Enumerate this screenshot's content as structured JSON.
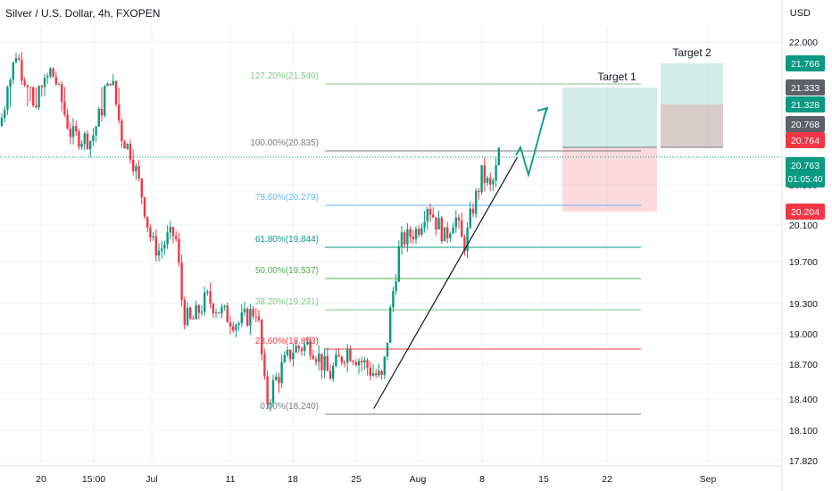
{
  "header": {
    "title": "Silver / U.S. Dollar, 4h, FXOPEN"
  },
  "price_axis": {
    "currency": "USD",
    "ticks": [
      "22.000",
      "20.500",
      "20.100",
      "19.700",
      "19.300",
      "19.000",
      "18.700",
      "18.400",
      "18.100",
      "17.820"
    ],
    "badges": [
      {
        "text": "21.766",
        "color": "#089981"
      },
      {
        "text": "21.333",
        "color": "#5d606b"
      },
      {
        "text": "21.328",
        "color": "#089981"
      },
      {
        "text": "20.768",
        "color": "#5d606b"
      },
      {
        "text": "20.764",
        "color": "#f23645"
      },
      {
        "text": "20.763",
        "sub": "01:05:40",
        "color": "#089981"
      },
      {
        "text": "20.204",
        "color": "#f23645"
      }
    ]
  },
  "time_axis": {
    "labels": [
      "20",
      "15:00",
      "Jul",
      "11",
      "18",
      "25",
      "Aug",
      "8",
      "15",
      "22",
      "Sep"
    ]
  },
  "chart_data": {
    "type": "candlestick",
    "symbol": "Silver / U.S. Dollar",
    "interval": "4h",
    "source": "FXOPEN",
    "y_unit": "USD",
    "ylim": [
      17.82,
      22.15
    ],
    "current_price": 20.763,
    "path": [
      {
        "t": "Jun 15",
        "price": 21.1
      },
      {
        "t": "Jun 17",
        "price": 21.9
      },
      {
        "t": "Jun 19",
        "price": 21.2
      },
      {
        "t": "Jun 21",
        "price": 21.7
      },
      {
        "t": "Jun 23",
        "price": 21.0
      },
      {
        "t": "Jun 25",
        "price": 20.95
      },
      {
        "t": "Jun 27",
        "price": 21.6
      },
      {
        "t": "Jun 28",
        "price": 21.0
      },
      {
        "t": "Jun 29",
        "price": 20.8
      },
      {
        "t": "Jun 30",
        "price": 20.4
      },
      {
        "t": "Jul 1",
        "price": 19.9
      },
      {
        "t": "Jul 2",
        "price": 19.8
      },
      {
        "t": "Jul 3",
        "price": 19.95
      },
      {
        "t": "Jul 4",
        "price": 20.0
      },
      {
        "t": "Jul 5",
        "price": 19.2
      },
      {
        "t": "Jul 6",
        "price": 19.1
      },
      {
        "t": "Jul 8",
        "price": 19.35
      },
      {
        "t": "Jul 10",
        "price": 19.2
      },
      {
        "t": "Jul 12",
        "price": 19.1
      },
      {
        "t": "Jul 14",
        "price": 19.25
      },
      {
        "t": "Jul 15",
        "price": 18.35
      },
      {
        "t": "Jul 16",
        "price": 18.55
      },
      {
        "t": "Jul 18",
        "price": 18.85
      },
      {
        "t": "Jul 20",
        "price": 18.9
      },
      {
        "t": "Jul 22",
        "price": 18.6
      },
      {
        "t": "Jul 24",
        "price": 18.85
      },
      {
        "t": "Jul 26",
        "price": 18.7
      },
      {
        "t": "Jul 28",
        "price": 18.55
      },
      {
        "t": "Jul 29",
        "price": 19.3
      },
      {
        "t": "Jul 30",
        "price": 19.9
      },
      {
        "t": "Aug 1",
        "price": 20.05
      },
      {
        "t": "Aug 2",
        "price": 20.3
      },
      {
        "t": "Aug 4",
        "price": 19.95
      },
      {
        "t": "Aug 5",
        "price": 20.2
      },
      {
        "t": "Aug 6",
        "price": 19.85
      },
      {
        "t": "Aug 7",
        "price": 20.25
      },
      {
        "t": "Aug 8",
        "price": 20.6
      },
      {
        "t": "Aug 9",
        "price": 20.45
      },
      {
        "t": "Aug 10",
        "price": 20.76
      }
    ],
    "fibonacci": [
      {
        "label": "127.20%(21.540)",
        "price": 21.54,
        "color": "#81c784"
      },
      {
        "label": "100.00%(20.835)",
        "price": 20.835,
        "color": "#787b86"
      },
      {
        "label": "78.60%(20.279)",
        "price": 20.279,
        "color": "#64b5f6"
      },
      {
        "label": "61.80%(19.844)",
        "price": 19.844,
        "color": "#089981"
      },
      {
        "label": "50.00%(19.537)",
        "price": 19.537,
        "color": "#4caf50"
      },
      {
        "label": "38.20%(19.231)",
        "price": 19.231,
        "color": "#81c784"
      },
      {
        "label": "23.60%(18.853)",
        "price": 18.853,
        "color": "#f23645"
      },
      {
        "label": "0.00%(18.240)",
        "price": 18.24,
        "color": "#787b86"
      }
    ],
    "targets": [
      {
        "label": "Target 1",
        "entry": 20.768,
        "target": 21.333,
        "stop": 20.204
      },
      {
        "label": "Target 2",
        "entry": 20.768,
        "target": 21.766,
        "stop": 21.328
      }
    ],
    "trendline": {
      "from": {
        "t": "Jul 27",
        "price": 18.3
      },
      "to": {
        "t": "Aug 12",
        "price": 20.76
      }
    }
  }
}
